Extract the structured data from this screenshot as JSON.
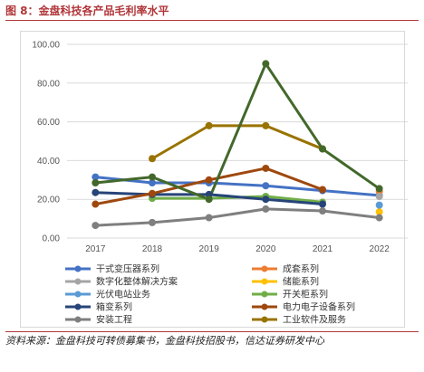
{
  "figure": {
    "title": "图 8：金盘科技各产品毛利率水平",
    "source": "资料来源：金盘科技可转债募集书，金盘科技招股书，信达证券研发中心"
  },
  "chart_data": {
    "type": "line",
    "x": [
      "2017",
      "2018",
      "2019",
      "2020",
      "2021",
      "2022"
    ],
    "ylim": [
      0,
      100
    ],
    "yticks": [
      "0.00",
      "20.00",
      "40.00",
      "60.00",
      "80.00",
      "100.00"
    ],
    "grid": true,
    "legend_position": "bottom",
    "series": [
      {
        "name": "干式变压器系列",
        "color": "#4472c4",
        "values": [
          31.5,
          28.5,
          28.5,
          27,
          24.5,
          22
        ]
      },
      {
        "name": "成套系列",
        "color": "#ed7d31",
        "values": [
          null,
          null,
          null,
          null,
          null,
          24
        ]
      },
      {
        "name": "数字化整体解决方案",
        "color": "#a5a5a5",
        "values": [
          null,
          null,
          null,
          null,
          null,
          21.5
        ]
      },
      {
        "name": "储能系列",
        "color": "#ffc000",
        "values": [
          null,
          null,
          null,
          null,
          null,
          13.5
        ]
      },
      {
        "name": "光伏电站业务",
        "color": "#5b9bd5",
        "values": [
          null,
          null,
          null,
          null,
          null,
          17
        ]
      },
      {
        "name": "开关柜系列",
        "color": "#70ad47",
        "values": [
          null,
          20.5,
          20.5,
          21.5,
          18.5,
          null
        ]
      },
      {
        "name": "箱变系列",
        "color": "#264478",
        "values": [
          23.5,
          22.5,
          22.5,
          20,
          17.5,
          null
        ]
      },
      {
        "name": "电力电子设备系列",
        "color": "#9e480e",
        "values": [
          17.5,
          23,
          30,
          36,
          25,
          null
        ]
      },
      {
        "name": "安装工程",
        "color": "#7f7f7f",
        "values": [
          6.5,
          8,
          10.5,
          15,
          14,
          10.5
        ]
      },
      {
        "name": "工业软件及服务",
        "color": "#997300",
        "values": [
          null,
          41,
          58,
          58,
          46,
          null
        ]
      },
      {
        "name": "",
        "color": "#43682b",
        "values": [
          28.5,
          31.5,
          20,
          90,
          46,
          25.5
        ]
      }
    ]
  }
}
